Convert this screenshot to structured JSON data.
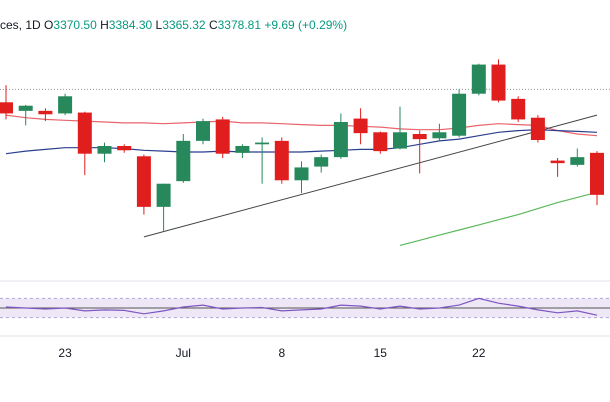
{
  "header": {
    "symbol_fragment": "ces,",
    "interval": "1D",
    "open_label": "O",
    "open": "3370.50",
    "high_label": "H",
    "high": "3384.30",
    "low_label": "L",
    "low": "3365.32",
    "close_label": "C",
    "close": "3378.81",
    "change": "+9.69 (+0.29%)"
  },
  "colors": {
    "up": "#26885b",
    "down": "#e01e1e",
    "ma_fast": "#e8646a",
    "ma_mid": "#2a3f8f",
    "ma_slow": "#5cb85c",
    "trendline": "#444444",
    "rsi_line": "#7e57c2",
    "rsi_band": "#ede7f6"
  },
  "chart_data": {
    "type": "candlestick",
    "x_ticks": [
      {
        "label": "23",
        "index": 3
      },
      {
        "label": "Jul",
        "index": 9
      },
      {
        "label": "8",
        "index": 14
      },
      {
        "label": "15",
        "index": 19
      },
      {
        "label": "22",
        "index": 24
      }
    ],
    "ylim": [
      3200,
      3480
    ],
    "candles": [
      {
        "o": 3405,
        "h": 3425,
        "l": 3385,
        "c": 3392
      },
      {
        "o": 3395,
        "h": 3402,
        "l": 3378,
        "c": 3401
      },
      {
        "o": 3395,
        "h": 3398,
        "l": 3383,
        "c": 3391
      },
      {
        "o": 3392,
        "h": 3415,
        "l": 3390,
        "c": 3412
      },
      {
        "o": 3393,
        "h": 3394,
        "l": 3320,
        "c": 3345
      },
      {
        "o": 3345,
        "h": 3358,
        "l": 3335,
        "c": 3354
      },
      {
        "o": 3354,
        "h": 3356,
        "l": 3346,
        "c": 3349
      },
      {
        "o": 3342,
        "h": 3344,
        "l": 3274,
        "c": 3283
      },
      {
        "o": 3283,
        "h": 3310,
        "l": 3255,
        "c": 3310
      },
      {
        "o": 3313,
        "h": 3368,
        "l": 3311,
        "c": 3360
      },
      {
        "o": 3360,
        "h": 3386,
        "l": 3356,
        "c": 3383
      },
      {
        "o": 3385,
        "h": 3388,
        "l": 3340,
        "c": 3345
      },
      {
        "o": 3346,
        "h": 3356,
        "l": 3340,
        "c": 3354
      },
      {
        "o": 3356,
        "h": 3364,
        "l": 3310,
        "c": 3358
      },
      {
        "o": 3360,
        "h": 3364,
        "l": 3310,
        "c": 3314
      },
      {
        "o": 3314,
        "h": 3336,
        "l": 3299,
        "c": 3329
      },
      {
        "o": 3330,
        "h": 3344,
        "l": 3323,
        "c": 3341
      },
      {
        "o": 3341,
        "h": 3392,
        "l": 3339,
        "c": 3382
      },
      {
        "o": 3386,
        "h": 3398,
        "l": 3356,
        "c": 3369
      },
      {
        "o": 3370,
        "h": 3371,
        "l": 3345,
        "c": 3348
      },
      {
        "o": 3351,
        "h": 3400,
        "l": 3350,
        "c": 3370
      },
      {
        "o": 3368,
        "h": 3372,
        "l": 3322,
        "c": 3362
      },
      {
        "o": 3363,
        "h": 3380,
        "l": 3360,
        "c": 3370
      },
      {
        "o": 3366,
        "h": 3420,
        "l": 3364,
        "c": 3415
      },
      {
        "o": 3415,
        "h": 3450,
        "l": 3413,
        "c": 3449
      },
      {
        "o": 3449,
        "h": 3455,
        "l": 3405,
        "c": 3407
      },
      {
        "o": 3409,
        "h": 3412,
        "l": 3382,
        "c": 3385
      },
      {
        "o": 3387,
        "h": 3390,
        "l": 3358,
        "c": 3361
      },
      {
        "o": 3337,
        "h": 3340,
        "l": 3318,
        "c": 3334
      },
      {
        "o": 3332,
        "h": 3351,
        "l": 3330,
        "c": 3341
      },
      {
        "o": 3346,
        "h": 3348,
        "l": 3285,
        "c": 3297
      }
    ],
    "ma_fast": [
      3390,
      3387,
      3385,
      3384,
      3383,
      3382,
      3381,
      3381,
      3380,
      3381,
      3382,
      3383,
      3381,
      3381,
      3380,
      3379,
      3378,
      3378,
      3377,
      3376,
      3374,
      3373,
      3373,
      3375,
      3378,
      3380,
      3379,
      3378,
      3372,
      3368,
      3366
    ],
    "ma_mid": [
      3345,
      3348,
      3350,
      3352,
      3352,
      3352,
      3351,
      3349,
      3348,
      3347,
      3347,
      3348,
      3347,
      3347,
      3347,
      3347,
      3348,
      3349,
      3350,
      3350,
      3352,
      3356,
      3360,
      3362,
      3366,
      3370,
      3372,
      3373,
      3372,
      3371,
      3370
    ],
    "ma_slow": {
      "start_index": 20,
      "values": [
        3238,
        3244,
        3250,
        3256,
        3262,
        3268,
        3274,
        3281,
        3288,
        3294,
        3300
      ]
    },
    "trendline": {
      "from": {
        "index": 7,
        "value": 3248
      },
      "to": {
        "index": 30,
        "value": 3390
      }
    },
    "reference_price": 3420,
    "rsi": {
      "ylim": [
        0,
        100
      ],
      "upper": 70,
      "lower": 30,
      "mid": 50,
      "values": [
        52,
        50,
        48,
        50,
        44,
        46,
        45,
        38,
        44,
        52,
        56,
        48,
        50,
        51,
        44,
        46,
        48,
        56,
        54,
        48,
        54,
        48,
        50,
        56,
        70,
        60,
        54,
        46,
        40,
        44,
        35
      ]
    }
  }
}
